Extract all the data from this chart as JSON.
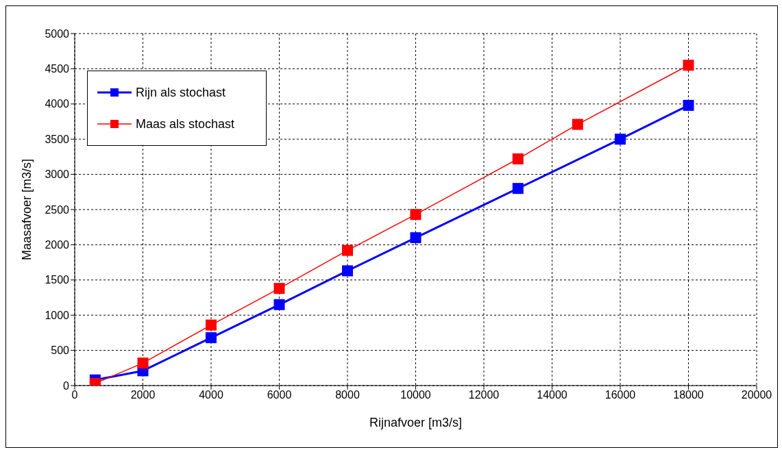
{
  "chart_data": {
    "type": "line",
    "xlabel": "Rijnafvoer [m3/s]",
    "ylabel": "Maasafvoer [m3/s]",
    "xlim": [
      0,
      20000
    ],
    "xticks": [
      0,
      2000,
      4000,
      6000,
      8000,
      10000,
      12000,
      14000,
      16000,
      18000,
      20000
    ],
    "ylim": [
      0,
      5000
    ],
    "yticks": [
      0,
      500,
      1000,
      1500,
      2000,
      2500,
      3000,
      3500,
      4000,
      4500,
      5000
    ],
    "grid": true,
    "legend": "top left",
    "marker": "square",
    "series": [
      {
        "name": "Rijn als stochast",
        "color": "#0000ff",
        "x": [
          600,
          2000,
          4000,
          6000,
          8000,
          10000,
          13000,
          16000,
          18000
        ],
        "values": [
          80,
          210,
          680,
          1150,
          1630,
          2100,
          2800,
          3500,
          3980
        ]
      },
      {
        "name": "Maas als stochast",
        "color": "#ff0000",
        "x": [
          600,
          2000,
          4000,
          6000,
          8000,
          10000,
          13000,
          14750,
          18000
        ],
        "values": [
          30,
          320,
          860,
          1380,
          1920,
          2430,
          3220,
          3710,
          4550
        ]
      }
    ]
  }
}
